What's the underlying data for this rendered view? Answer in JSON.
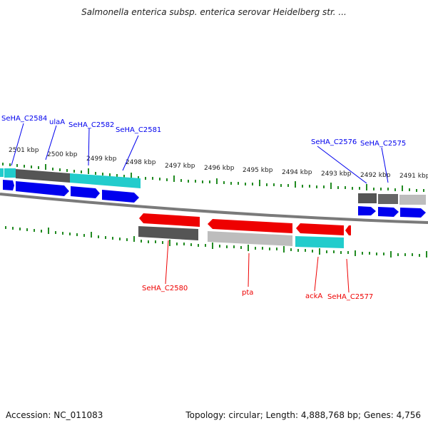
{
  "header": {
    "title": "Salmonella enterica subsp. enterica serovar Heidelberg str. ..."
  },
  "footer": {
    "accession": "Accession: NC_011083",
    "summary": "Topology: circular; Length: 4,888,768 bp; Genes: 4,756"
  },
  "colors": {
    "forward": "#0000ee",
    "reverse": "#ee0000",
    "tick": "#228b22",
    "backbone": "#7a7a7a",
    "dark_gray": "#555555",
    "light_gray": "#bdbdbd",
    "cyan": "#22cccc"
  },
  "scale": {
    "unit": "kbp",
    "labels": [
      "2501 kbp",
      "2500 kbp",
      "2499 kbp",
      "2498 kbp",
      "2497 kbp",
      "2496 kbp",
      "2495 kbp",
      "2494 kbp",
      "2493 kbp",
      "2492 kbp",
      "2491 kbp"
    ]
  },
  "top_genes": [
    "SeHA_C2584",
    "ulaA",
    "SeHA_C2582",
    "SeHA_C2581",
    "SeHA_C2576",
    "SeHA_C2575"
  ],
  "bottom_genes": [
    "SeHA_C2580",
    "pta",
    "ackA",
    "SeHA_C2577"
  ]
}
